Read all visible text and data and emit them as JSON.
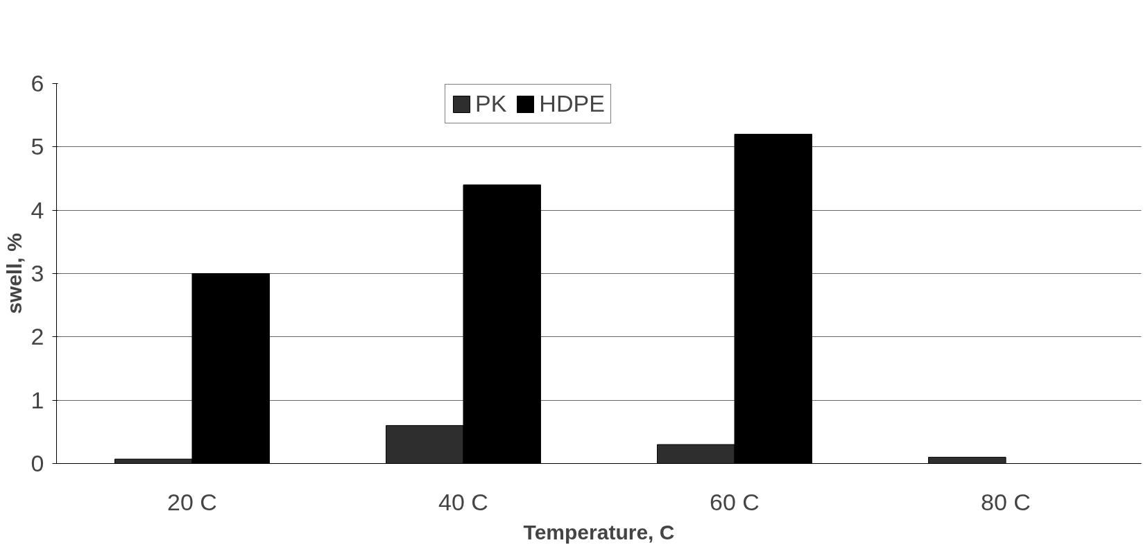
{
  "chart_data": {
    "type": "bar",
    "xlabel": "Temperature, C",
    "ylabel": "swell, %",
    "categories": [
      "20 C",
      "40 C",
      "60 C",
      "80 C"
    ],
    "series": [
      {
        "name": "PK",
        "color": "#2e2e2e",
        "values": [
          0.07,
          0.6,
          0.3,
          0.1
        ]
      },
      {
        "name": "HDPE",
        "color": "#000000",
        "values": [
          3.0,
          4.4,
          5.2,
          null
        ]
      }
    ],
    "ylim": [
      0,
      6
    ],
    "yticks": [
      0,
      1,
      2,
      3,
      4,
      5,
      6
    ],
    "grid": "y",
    "legend": "top"
  }
}
